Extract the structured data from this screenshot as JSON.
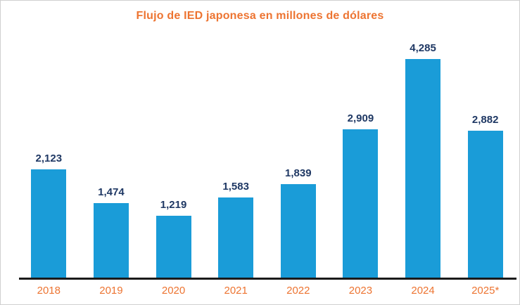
{
  "chart_data": {
    "type": "bar",
    "title": "Flujo de IED japonesa en millones de dólares",
    "categories": [
      "2018",
      "2019",
      "2020",
      "2021",
      "2022",
      "2023",
      "2024",
      "2025*"
    ],
    "values": [
      2123,
      1474,
      1219,
      1583,
      1839,
      2909,
      4285,
      2882
    ],
    "value_labels": [
      "2,123",
      "1,474",
      "1,219",
      "1,583",
      "1,839",
      "2,909",
      "4,285",
      "2,882"
    ],
    "xlabel": "",
    "ylabel": "",
    "ylim": [
      0,
      4285
    ],
    "grid": false,
    "legend": false,
    "data_labels_position": "above-bars"
  },
  "colors": {
    "bar_blue": "#1A9CD8",
    "title_orange": "#ED7431",
    "value_navy": "#1F3864",
    "axis_black": "#1A1A1A",
    "frame_gray": "#D0D0D0",
    "background": "#FFFFFF"
  }
}
